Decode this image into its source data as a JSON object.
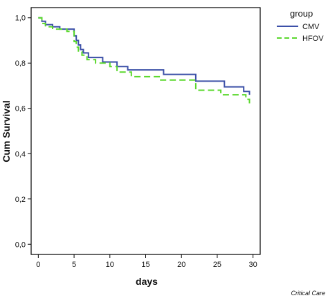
{
  "chart_data": {
    "type": "line",
    "title": "",
    "xlabel": "days",
    "ylabel": "Cum Survival",
    "xlim": [
      -1,
      31
    ],
    "ylim": [
      -0.045,
      1.045
    ],
    "x_ticks": [
      0,
      5,
      10,
      15,
      20,
      25,
      30
    ],
    "x_tick_labels": [
      "0",
      "5",
      "10",
      "15",
      "20",
      "25",
      "30"
    ],
    "y_ticks": [
      0.0,
      0.2,
      0.4,
      0.6,
      0.8,
      1.0
    ],
    "y_tick_labels": [
      "0,0",
      "0,2",
      "0,4",
      "0,6",
      "0,8",
      "1,0"
    ],
    "step": true,
    "grid": false,
    "legend": {
      "title": "group",
      "placement": "outside-top-right"
    },
    "series": [
      {
        "name": "CMV",
        "color": "#3c50a8",
        "dash": "solid",
        "x": [
          0,
          0.5,
          1,
          2,
          3,
          5,
          5.3,
          5.6,
          5.9,
          6.3,
          7,
          9,
          11,
          12.5,
          17.5,
          22,
          26,
          28.7,
          29.5
        ],
        "y": [
          1.0,
          0.985,
          0.97,
          0.96,
          0.95,
          0.92,
          0.9,
          0.88,
          0.86,
          0.845,
          0.825,
          0.805,
          0.785,
          0.77,
          0.75,
          0.72,
          0.695,
          0.675,
          0.66
        ]
      },
      {
        "name": "HFOV",
        "color": "#5ad82c",
        "dash": "dashed",
        "x": [
          0,
          0.5,
          1,
          2,
          4,
          5,
          5.3,
          5.6,
          6.1,
          6.8,
          8,
          10,
          11,
          13,
          17,
          22,
          25.5,
          29,
          29.5
        ],
        "y": [
          1.0,
          0.975,
          0.96,
          0.95,
          0.94,
          0.895,
          0.87,
          0.85,
          0.835,
          0.815,
          0.8,
          0.785,
          0.76,
          0.74,
          0.725,
          0.68,
          0.66,
          0.64,
          0.62
        ]
      }
    ]
  },
  "credit": "Critical Care"
}
